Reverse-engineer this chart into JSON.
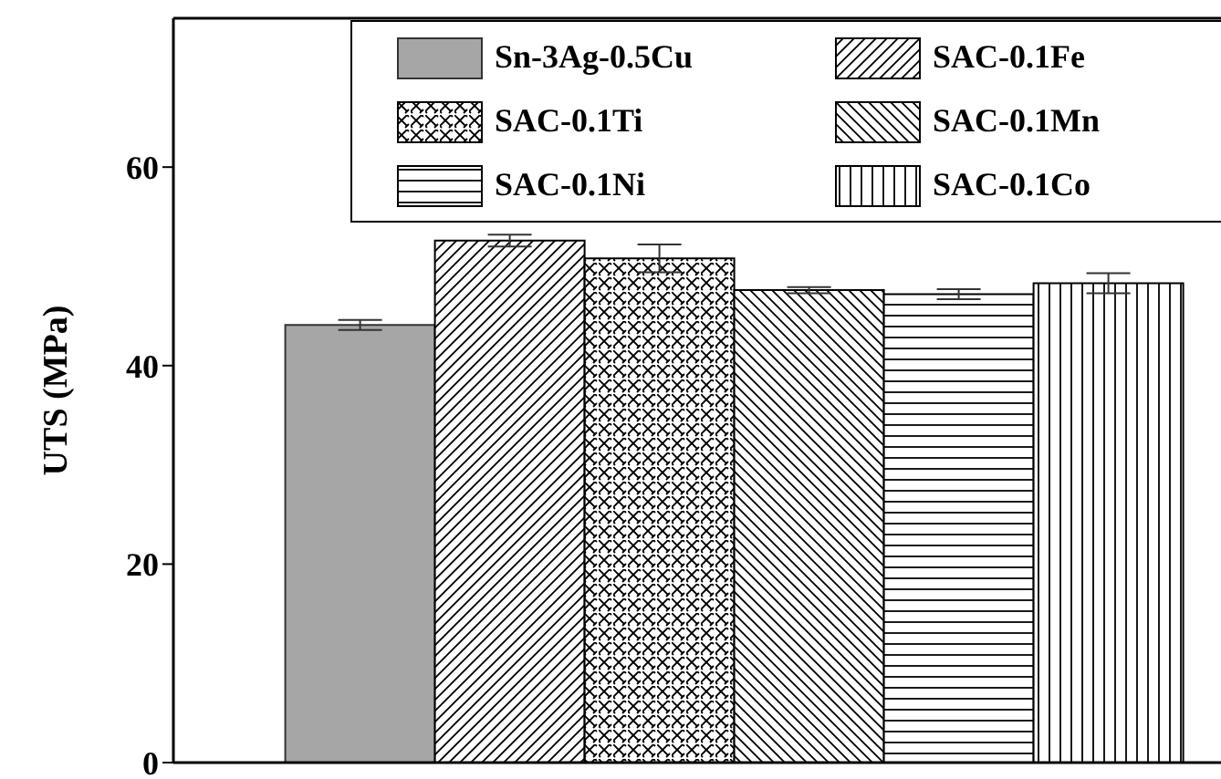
{
  "chart_data": {
    "type": "bar",
    "ylabel": "UTS (MPa)",
    "categories": [
      null
    ],
    "ylim": [
      0,
      75
    ],
    "yticks": [
      0,
      20,
      40,
      60
    ],
    "legend": "top right",
    "series": [
      {
        "name": "Sn-3Ag-0.5Cu",
        "color": "#a6a6a6",
        "values": [
          44.1
        ],
        "errors": [
          0.5
        ]
      },
      {
        "name": "SAC-0.1Fe",
        "color": "#000000",
        "values": [
          52.6
        ],
        "errors": [
          0.6
        ]
      },
      {
        "name": "SAC-0.1Ti",
        "color": "#000000",
        "values": [
          50.8
        ],
        "errors": [
          1.4
        ]
      },
      {
        "name": "SAC-0.1Mn",
        "color": "#000000",
        "values": [
          47.6
        ],
        "errors": [
          0.3
        ]
      },
      {
        "name": "SAC-0.1Ni",
        "color": "#000000",
        "values": [
          47.2
        ],
        "errors": [
          0.5
        ]
      },
      {
        "name": "SAC-0.1Co",
        "color": "#000000",
        "values": [
          48.3
        ],
        "errors": [
          1.0
        ]
      }
    ]
  }
}
